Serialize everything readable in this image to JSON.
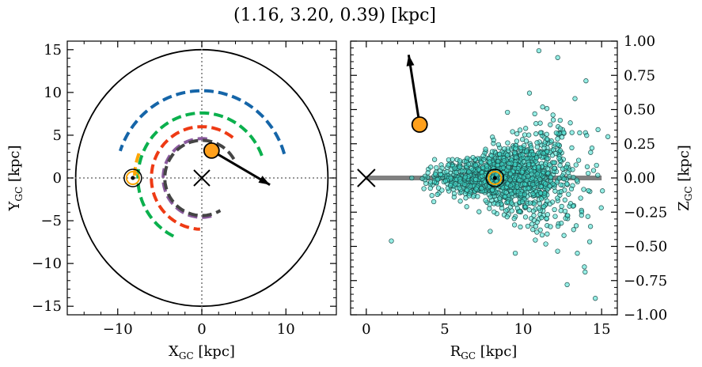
{
  "title": "(1.16, 3.20, 0.39) [kpc]",
  "chart_data": [
    {
      "type": "line",
      "panel": "left",
      "xlabel": "X",
      "xlabel_sub": "GC",
      "xlabel_unit": " [kpc]",
      "ylabel": "Y",
      "ylabel_sub": "GC",
      "ylabel_unit": " [kpc]",
      "xlim": [
        -16,
        16
      ],
      "ylim": [
        -16,
        16
      ],
      "xticks": [
        -10,
        0,
        10
      ],
      "xtick_labels": [
        "−10",
        "0",
        "10"
      ],
      "yticks": [
        -15,
        -10,
        -5,
        0,
        5,
        10,
        15
      ],
      "ytick_labels": [
        "−15",
        "−10",
        "−5",
        "0",
        "5",
        "10",
        "15"
      ],
      "grid": false,
      "reference_lines": {
        "x": 0,
        "y": 0,
        "style": "dotted"
      },
      "boundary_circle_radius": 15,
      "spiral_arcs": [
        {
          "color": "#1565a8",
          "radius": 10.2,
          "start_deg": 16,
          "end_deg": 162
        },
        {
          "color": "#0bb04d",
          "radius": 7.6,
          "start_deg": 20,
          "end_deg": 245
        },
        {
          "color": "#ee3a14",
          "radius": 6.0,
          "start_deg": 52,
          "end_deg": 268
        },
        {
          "color": "#8a5a9e",
          "radius": 4.6,
          "start_deg": 82,
          "end_deg": 285
        },
        {
          "color": "#444444",
          "radius": 4.4,
          "start_deg": 30,
          "end_deg": 300
        },
        {
          "color": "#ffa500",
          "radius": 8.0,
          "start_deg": 159,
          "end_deg": 178
        }
      ],
      "galactic_center": [
        0,
        0
      ],
      "sun_position": [
        -8.2,
        0
      ],
      "object_position": [
        1.16,
        3.2
      ],
      "velocity_arrow_end": [
        8.1,
        -0.8
      ],
      "colors": {
        "object": "#ffa01c",
        "sun": "#ffa500",
        "arrow": "#000000"
      }
    },
    {
      "type": "scatter",
      "panel": "right",
      "xlabel": "R",
      "xlabel_sub": "GC",
      "xlabel_unit": " [kpc]",
      "ylabel": "Z",
      "ylabel_sub": "GC",
      "ylabel_unit": " [kpc]",
      "xlim": [
        -1,
        16
      ],
      "ylim": [
        -1,
        1
      ],
      "xticks": [
        0,
        5,
        10,
        15
      ],
      "xtick_labels": [
        "0",
        "5",
        "10",
        "15"
      ],
      "yticks": [
        -1,
        -0.75,
        -0.5,
        -0.25,
        0,
        0.25,
        0.5,
        0.75,
        1
      ],
      "ytick_labels": [
        "−1.00",
        "−0.75",
        "−0.50",
        "−0.25",
        "0.00",
        "0.25",
        "0.50",
        "0.75",
        "1.00"
      ],
      "grid": false,
      "disk_line": {
        "x": [
          0,
          15
        ],
        "y": 0,
        "color": "#808080"
      },
      "galactic_center": [
        0,
        0
      ],
      "sun_position": [
        8.2,
        0
      ],
      "object_position": [
        3.4,
        0.39
      ],
      "velocity_arrow_end": [
        2.7,
        0.9
      ],
      "colors": {
        "points": "#40e0d0",
        "object": "#ffa01c",
        "sun": "#ffa500"
      },
      "stars_sample": [
        [
          6.1,
          0.05
        ],
        [
          7.0,
          -0.08
        ],
        [
          8.4,
          0.12
        ],
        [
          9.2,
          0.03
        ],
        [
          10.1,
          -0.12
        ],
        [
          11.3,
          0.18
        ],
        [
          12.4,
          -0.05
        ],
        [
          13.1,
          0.22
        ],
        [
          9.8,
          0.35
        ],
        [
          10.7,
          -0.31
        ],
        [
          7.6,
          0.21
        ],
        [
          5.6,
          -0.14
        ],
        [
          11.9,
          0.46
        ],
        [
          12.6,
          -0.42
        ],
        [
          10.4,
          0.62
        ],
        [
          9.5,
          -0.55
        ],
        [
          13.6,
          0.33
        ],
        [
          8.9,
          -0.24
        ],
        [
          6.8,
          0.15
        ],
        [
          4.4,
          0.03
        ],
        [
          3.8,
          -0.04
        ],
        [
          2.9,
          0.0
        ],
        [
          1.6,
          -0.46
        ],
        [
          11.0,
          0.93
        ],
        [
          12.2,
          0.88
        ],
        [
          13.9,
          -0.65
        ],
        [
          14.6,
          -0.88
        ],
        [
          14.0,
          0.71
        ],
        [
          9.0,
          0.48
        ],
        [
          7.9,
          -0.39
        ],
        [
          10.2,
          0.27
        ],
        [
          8.1,
          0.07
        ],
        [
          6.4,
          -0.21
        ],
        [
          11.7,
          -0.19
        ],
        [
          13.3,
          0.58
        ],
        [
          12.8,
          -0.78
        ]
      ]
    }
  ]
}
